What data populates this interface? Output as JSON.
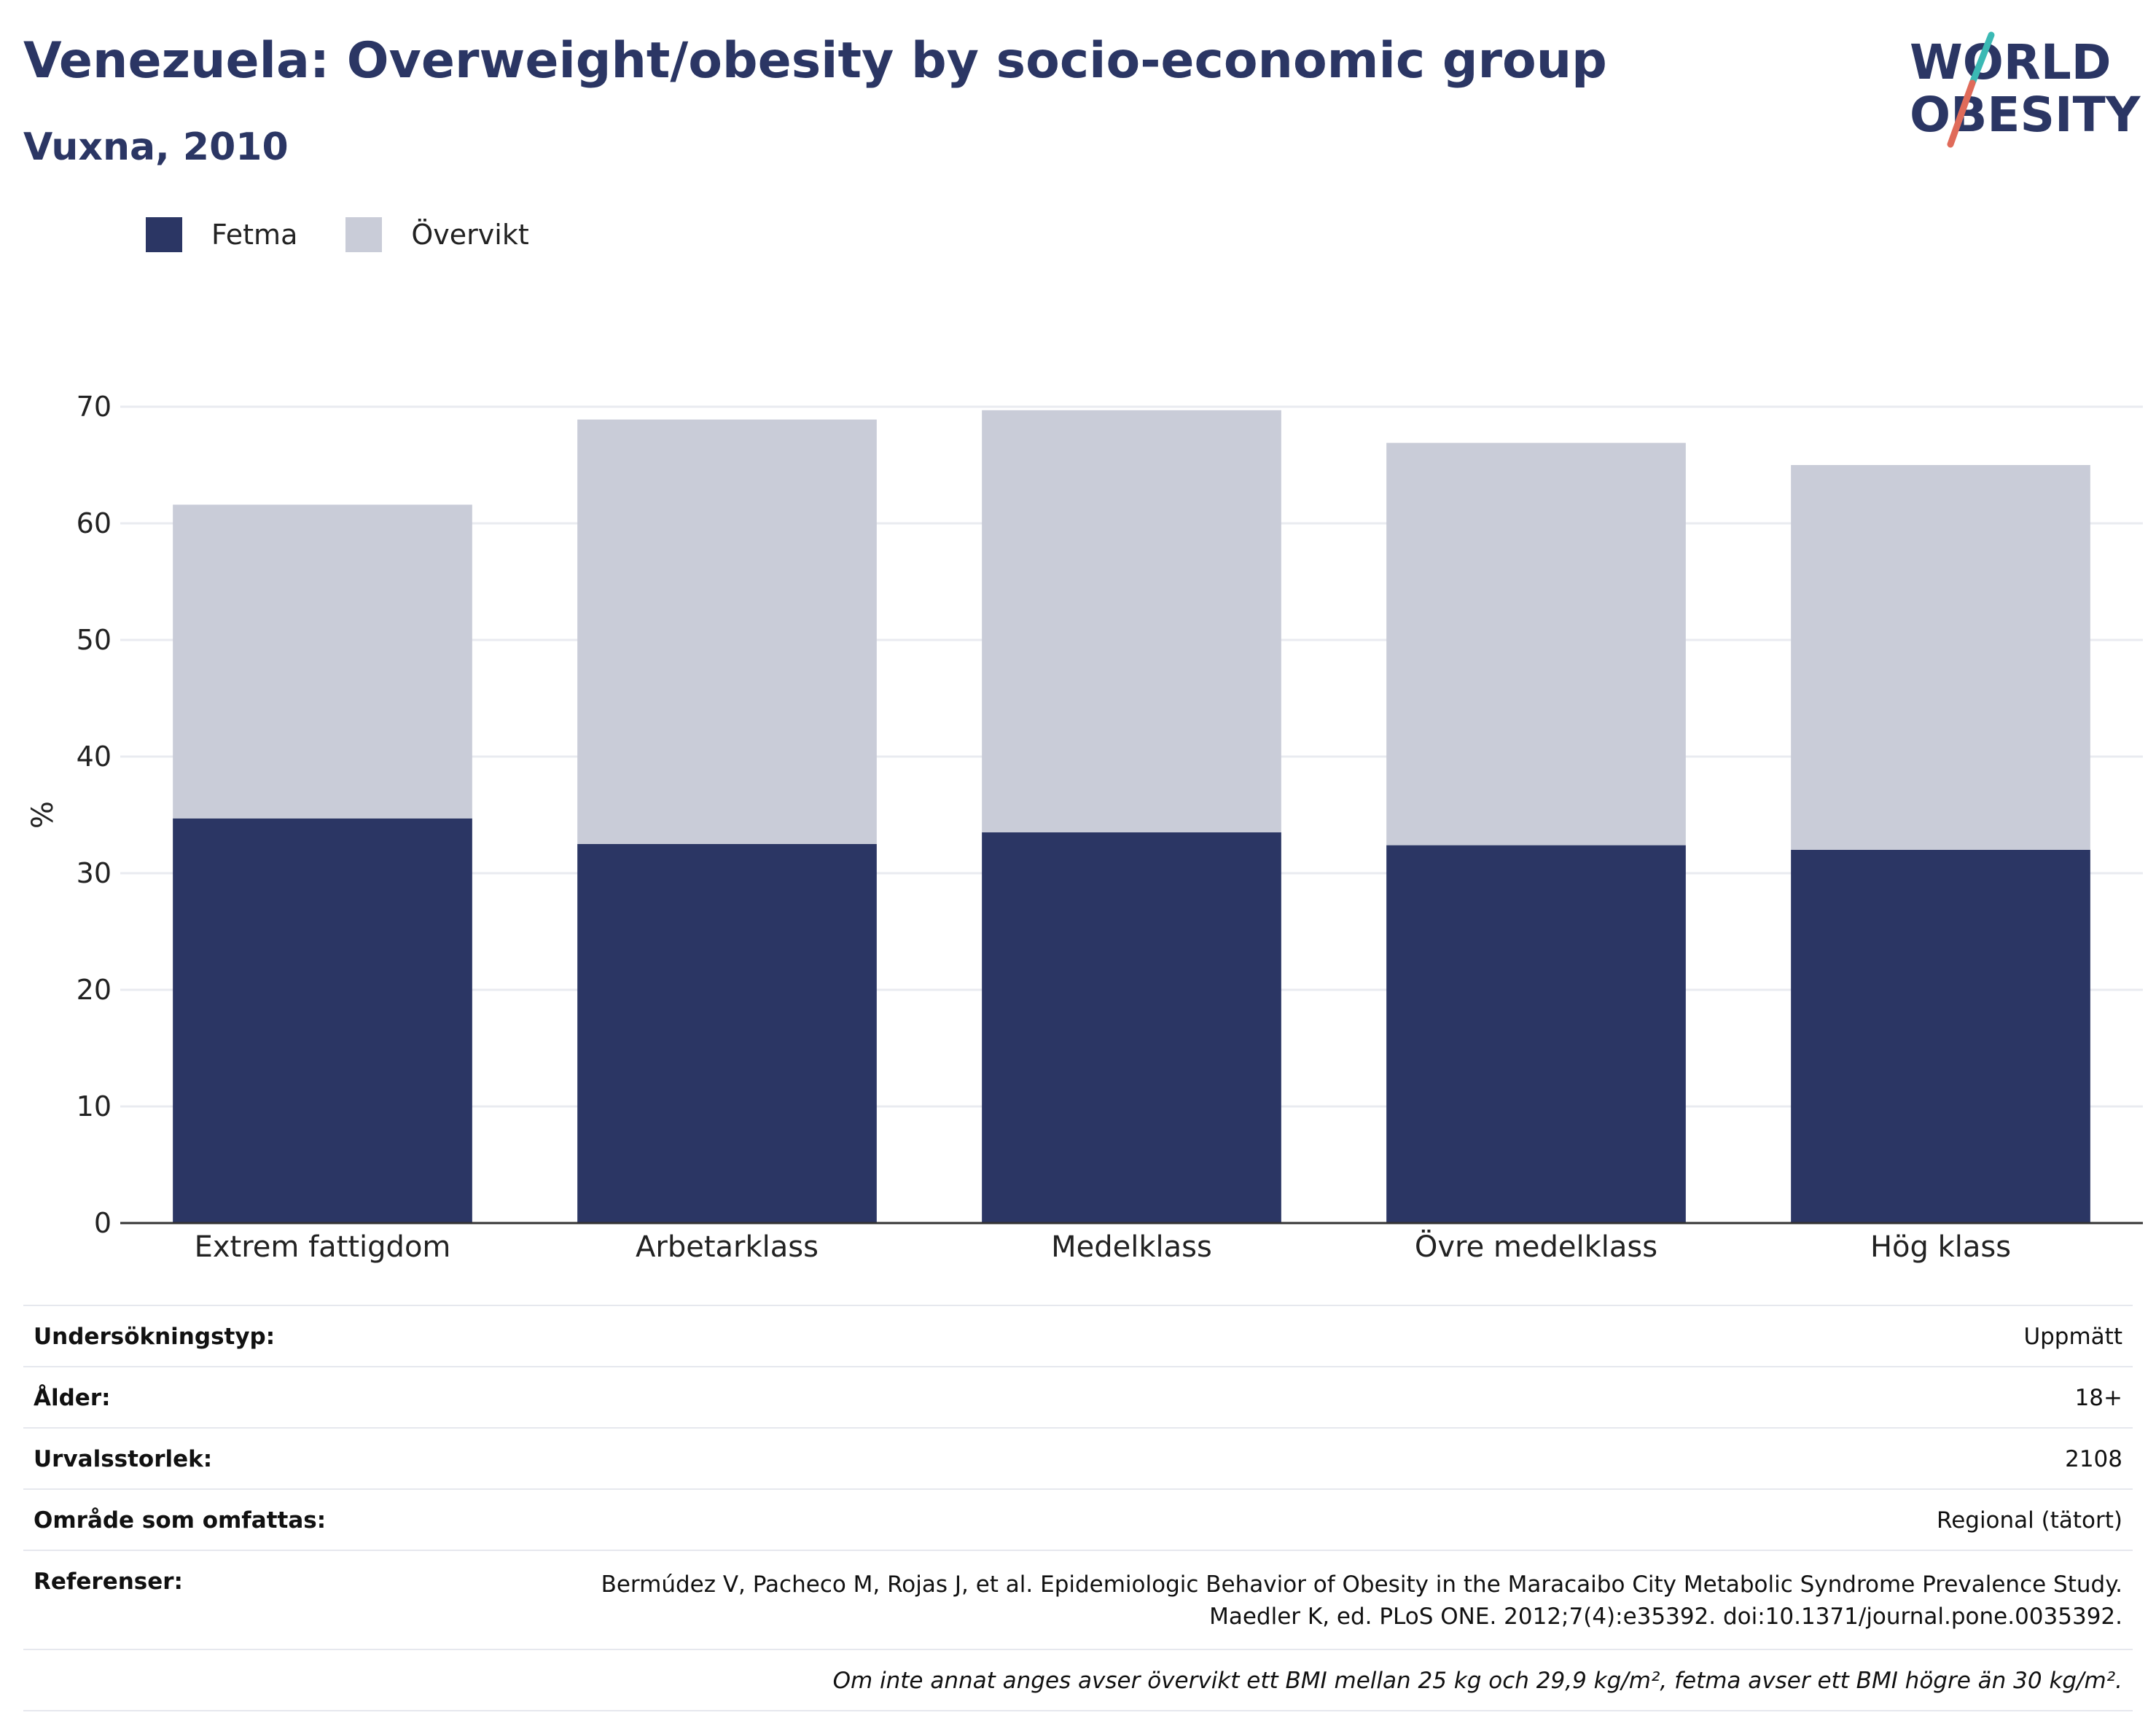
{
  "header": {
    "title": "Venezuela: Overweight/obesity by socio-economic group",
    "subtitle": "Vuxna, 2010"
  },
  "logo": {
    "line1": "WORLD",
    "line2": "OBESITY"
  },
  "legend": [
    {
      "label": "Fetma",
      "color": "#2b3664"
    },
    {
      "label": "Övervikt",
      "color": "#c9ccd8"
    }
  ],
  "chart_data": {
    "type": "bar",
    "stacked": true,
    "categories": [
      "Extrem fattigdom",
      "Arbetarklass",
      "Medelklass",
      "Övre medelklass",
      "Hög klass"
    ],
    "series": [
      {
        "name": "Fetma",
        "values": [
          34.7,
          32.5,
          33.5,
          32.4,
          32.0
        ],
        "color": "#2b3664"
      },
      {
        "name": "Övervikt",
        "values": [
          26.9,
          36.4,
          36.2,
          34.5,
          33.0
        ],
        "color": "#c9ccd8"
      }
    ],
    "ylabel": "%",
    "yticks": [
      0,
      10,
      20,
      30,
      40,
      50,
      60,
      70
    ],
    "ylim": [
      0,
      70
    ],
    "grid": true,
    "legend_position": "top-left"
  },
  "meta": [
    {
      "key": "Undersökningstyp:",
      "value": "Uppmätt"
    },
    {
      "key": "Ålder:",
      "value": "18+"
    },
    {
      "key": "Urvalsstorlek:",
      "value": "2108"
    },
    {
      "key": "Område som omfattas:",
      "value": "Regional (tätort)"
    }
  ],
  "references": {
    "key": "Referenser:",
    "line1": "Bermúdez V, Pacheco M, Rojas J, et al. Epidemiologic Behavior of Obesity in the Maracaibo City Metabolic Syndrome Prevalence Study.",
    "line2": "Maedler K, ed. PLoS ONE. 2012;7(4):e35392. doi:10.1371/journal.pone.0035392."
  },
  "note": "Om inte annat anges avser övervikt ett BMI mellan 25 kg och 29,9 kg/m², fetma avser ett BMI högre än 30 kg/m²."
}
